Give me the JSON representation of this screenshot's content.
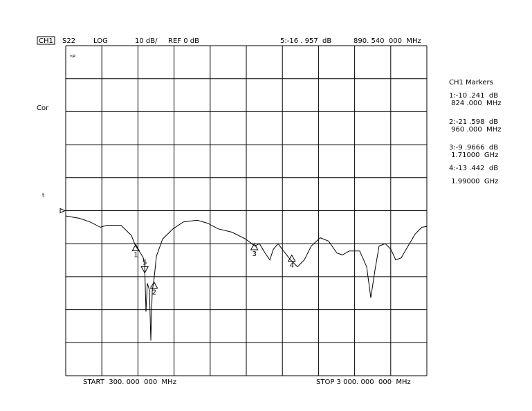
{
  "header": {
    "channel": "CH1",
    "parameter": "S22",
    "format": "LOG",
    "scale": "10 dB/",
    "reference": "REF 0 dB",
    "active_marker_value": "5:-16 . 957  dB",
    "active_marker_freq": "890. 540  000  MHz"
  },
  "side_labels": {
    "correction": "Cor",
    "level_mark": "t",
    "status": "*P"
  },
  "footer": {
    "start": "START  300. 000  000  MHz",
    "stop": "STOP 3 000. 000  000  MHz"
  },
  "marker_panel": {
    "title": "CH1 Markers",
    "lines": [
      "1:-10 .241  dB",
      " 824 .000  MHz",
      "2:-21 .598  dB",
      " 960 .000  MHz",
      "3:-9 .9666  dB",
      " 1.71000  GHz",
      "4:-13 .442  dB",
      " 1.99000  GHz"
    ]
  },
  "chart_data": {
    "type": "line",
    "x": [
      300,
      403,
      481,
      559,
      610,
      713,
      791,
      822,
      859,
      880,
      890,
      900,
      910,
      926,
      936,
      947,
      957,
      978,
      1024,
      1102,
      1180,
      1283,
      1361,
      1439,
      1542,
      1646,
      1713,
      1749,
      1790,
      1826,
      1852,
      1888,
      1919,
      1981,
      2033,
      2084,
      2136,
      2203,
      2265,
      2327,
      2369,
      2420,
      2498,
      2550,
      2581,
      2612,
      2643,
      2689,
      2731,
      2767,
      2808,
      2860,
      2912,
      2963,
      3000
    ],
    "series": [
      {
        "color": "#000000",
        "values": [
          -1.6,
          -2.3,
          -3.4,
          -5,
          -4.4,
          -4.4,
          -7.5,
          -10.7,
          -12.8,
          -14.3,
          -16.4,
          -30.6,
          -22,
          -24,
          -39.4,
          -24,
          -22,
          -13.8,
          -8.6,
          -5.5,
          -3.4,
          -2.9,
          -3.8,
          -5.5,
          -6.5,
          -8.6,
          -10.7,
          -10,
          -12.8,
          -14.9,
          -11.7,
          -10,
          -11.7,
          -14.9,
          -17,
          -14.9,
          -10.7,
          -8.2,
          -9.2,
          -12.8,
          -13.4,
          -12.2,
          -12.2,
          -17,
          -26.4,
          -18,
          -10.7,
          -10,
          -11.7,
          -14.9,
          -14.3,
          -10.7,
          -7.1,
          -5,
          -4.8
        ]
      }
    ],
    "markers": [
      {
        "label": "1",
        "x": 824,
        "y": -10.241
      },
      {
        "label": "2",
        "x": 960,
        "y": -21.598
      },
      {
        "label": "3",
        "x": 1710,
        "y": -9.9666
      },
      {
        "label": "4",
        "x": 1990,
        "y": -13.442
      },
      {
        "label": "5",
        "x": 890.54,
        "y": -16.957
      }
    ],
    "xlim": [
      300,
      3000
    ],
    "ylim": [
      -50,
      50
    ],
    "xticks": [
      300,
      570,
      840,
      1110,
      1380,
      1650,
      1920,
      2190,
      2460,
      2730,
      3000
    ],
    "yticks": [
      -50,
      -40,
      -30,
      -20,
      -10,
      0,
      10,
      20,
      30,
      40,
      50
    ],
    "reference_level": 0,
    "grid": true
  }
}
